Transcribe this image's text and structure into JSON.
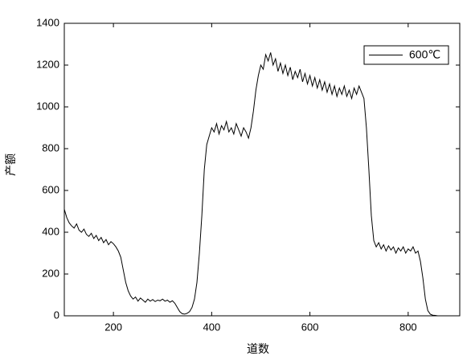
{
  "chart_data": {
    "type": "line",
    "xlabel": "道数",
    "ylabel": "产额",
    "x": [
      100,
      105,
      110,
      115,
      120,
      125,
      130,
      135,
      140,
      145,
      150,
      155,
      160,
      165,
      170,
      175,
      180,
      185,
      190,
      195,
      200,
      205,
      210,
      215,
      220,
      225,
      230,
      235,
      240,
      245,
      250,
      255,
      260,
      265,
      270,
      275,
      280,
      285,
      290,
      295,
      300,
      305,
      310,
      315,
      320,
      325,
      330,
      335,
      340,
      345,
      350,
      355,
      360,
      365,
      370,
      375,
      380,
      385,
      390,
      395,
      400,
      405,
      410,
      415,
      420,
      425,
      430,
      435,
      440,
      445,
      450,
      455,
      460,
      465,
      470,
      475,
      480,
      485,
      490,
      495,
      500,
      505,
      510,
      515,
      520,
      525,
      530,
      535,
      540,
      545,
      550,
      555,
      560,
      565,
      570,
      575,
      580,
      585,
      590,
      595,
      600,
      605,
      610,
      615,
      620,
      625,
      630,
      635,
      640,
      645,
      650,
      655,
      660,
      665,
      670,
      675,
      680,
      685,
      690,
      695,
      700,
      705,
      710,
      715,
      720,
      725,
      730,
      735,
      740,
      745,
      750,
      755,
      760,
      765,
      770,
      775,
      780,
      785,
      790,
      795,
      800,
      805,
      810,
      815,
      820,
      825,
      830,
      835,
      840,
      845,
      850,
      855,
      860,
      865,
      870,
      875,
      880,
      885,
      890,
      895,
      900
    ],
    "series": [
      {
        "name": "600℃",
        "color": "#000000",
        "values": [
          510,
          470,
          445,
          430,
          420,
          440,
          410,
          400,
          415,
          390,
          380,
          395,
          370,
          385,
          360,
          375,
          350,
          365,
          340,
          355,
          345,
          330,
          310,
          280,
          220,
          160,
          120,
          95,
          80,
          90,
          70,
          85,
          75,
          65,
          80,
          70,
          78,
          68,
          75,
          72,
          80,
          70,
          75,
          65,
          72,
          60,
          40,
          20,
          10,
          8,
          12,
          20,
          40,
          80,
          160,
          300,
          480,
          700,
          820,
          860,
          900,
          880,
          920,
          870,
          910,
          890,
          930,
          880,
          900,
          870,
          920,
          890,
          860,
          900,
          880,
          850,
          900,
          980,
          1080,
          1150,
          1200,
          1180,
          1250,
          1220,
          1260,
          1200,
          1230,
          1170,
          1210,
          1160,
          1200,
          1150,
          1190,
          1130,
          1170,
          1140,
          1180,
          1120,
          1160,
          1110,
          1150,
          1100,
          1140,
          1090,
          1130,
          1080,
          1120,
          1070,
          1110,
          1060,
          1100,
          1050,
          1090,
          1060,
          1100,
          1050,
          1080,
          1040,
          1090,
          1060,
          1100,
          1070,
          1040,
          900,
          700,
          480,
          360,
          330,
          350,
          320,
          340,
          310,
          335,
          315,
          330,
          300,
          325,
          310,
          330,
          300,
          320,
          310,
          330,
          300,
          310,
          260,
          180,
          80,
          25,
          8,
          3,
          2,
          0,
          0,
          0,
          0,
          0,
          0,
          0,
          0,
          0
        ]
      }
    ],
    "xlim": [
      100,
      905
    ],
    "ylim": [
      0,
      1400
    ],
    "xticks": [
      200,
      400,
      600,
      800
    ],
    "yticks": [
      0,
      200,
      400,
      600,
      800,
      1000,
      1200,
      1400
    ],
    "legend": "upper right"
  }
}
